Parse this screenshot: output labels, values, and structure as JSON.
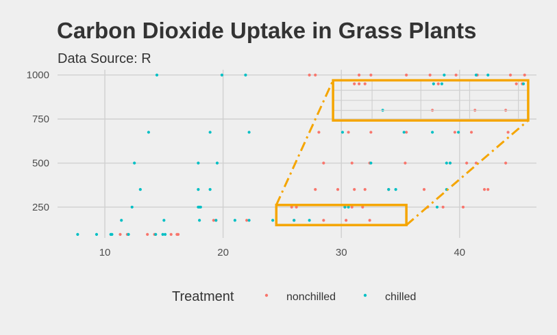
{
  "chart_data": {
    "type": "scatter",
    "title": "Carbon Dioxide Uptake in Grass Plants",
    "subtitle": "Data Source: R",
    "xlabel": "",
    "ylabel": "",
    "xlim": [
      6,
      46.5
    ],
    "ylim": [
      75,
      1030
    ],
    "x_ticks": [
      "10",
      "20",
      "30",
      "40"
    ],
    "y_ticks": [
      "250",
      "500",
      "750",
      "1000"
    ],
    "grid": true,
    "legend": {
      "title": "Treatment",
      "position": "bottom",
      "entries": [
        {
          "label": "nonchilled",
          "color": "#f8766d"
        },
        {
          "label": "chilled",
          "color": "#00bfc4"
        }
      ]
    },
    "series": [
      {
        "name": "nonchilled",
        "color": "#f8766d",
        "points": [
          [
            11.3,
            95
          ],
          [
            11.9,
            95
          ],
          [
            13.6,
            95
          ],
          [
            14.2,
            95
          ],
          [
            15.6,
            95
          ],
          [
            16.1,
            95
          ],
          [
            16.2,
            95
          ],
          [
            19.2,
            175
          ],
          [
            19.4,
            175
          ],
          [
            22.0,
            175
          ],
          [
            26.0,
            175
          ],
          [
            28.5,
            175
          ],
          [
            30.4,
            175
          ],
          [
            32.4,
            175
          ],
          [
            25.8,
            250
          ],
          [
            26.2,
            250
          ],
          [
            30.3,
            250
          ],
          [
            30.9,
            250
          ],
          [
            31.8,
            250
          ],
          [
            37.3,
            250
          ],
          [
            38.6,
            250
          ],
          [
            40.3,
            250
          ],
          [
            27.8,
            350
          ],
          [
            29.7,
            350
          ],
          [
            31.1,
            350
          ],
          [
            32.0,
            350
          ],
          [
            34.0,
            350
          ],
          [
            37.0,
            350
          ],
          [
            42.1,
            350
          ],
          [
            42.4,
            350
          ],
          [
            28.5,
            500
          ],
          [
            30.9,
            500
          ],
          [
            32.4,
            500
          ],
          [
            35.4,
            500
          ],
          [
            39.2,
            500
          ],
          [
            40.6,
            500
          ],
          [
            41.4,
            500
          ],
          [
            43.9,
            500
          ],
          [
            28.1,
            675
          ],
          [
            30.6,
            675
          ],
          [
            32.5,
            675
          ],
          [
            35.5,
            675
          ],
          [
            39.6,
            675
          ],
          [
            41.0,
            675
          ],
          [
            44.1,
            675
          ],
          [
            27.3,
            1000
          ],
          [
            27.8,
            1000
          ],
          [
            31.5,
            1000
          ],
          [
            32.5,
            1000
          ],
          [
            35.5,
            1000
          ],
          [
            37.5,
            1000
          ],
          [
            39.7,
            1000
          ],
          [
            41.5,
            1000
          ],
          [
            44.3,
            1000
          ],
          [
            45.5,
            1000
          ],
          [
            31.1,
            950
          ],
          [
            31.5,
            950
          ],
          [
            32.0,
            950
          ],
          [
            38.2,
            950
          ],
          [
            44.8,
            950
          ],
          [
            45.3,
            950
          ],
          [
            37.7,
            800
          ],
          [
            41.3,
            800
          ],
          [
            43.9,
            800
          ]
        ]
      },
      {
        "name": "chilled",
        "color": "#00bfc4",
        "points": [
          [
            7.7,
            95
          ],
          [
            9.3,
            95
          ],
          [
            10.5,
            95
          ],
          [
            10.6,
            95
          ],
          [
            12.0,
            95
          ],
          [
            14.3,
            95
          ],
          [
            14.9,
            95
          ],
          [
            15.1,
            95
          ],
          [
            11.4,
            175
          ],
          [
            18.0,
            175
          ],
          [
            19.4,
            175
          ],
          [
            21.0,
            175
          ],
          [
            22.2,
            175
          ],
          [
            24.2,
            175
          ],
          [
            26.0,
            175
          ],
          [
            27.3,
            175
          ],
          [
            15.0,
            175
          ],
          [
            12.3,
            250
          ],
          [
            17.9,
            250
          ],
          [
            18.0,
            250
          ],
          [
            18.1,
            250
          ],
          [
            30.3,
            250
          ],
          [
            30.6,
            250
          ],
          [
            38.1,
            250
          ],
          [
            13.0,
            350
          ],
          [
            17.9,
            350
          ],
          [
            18.9,
            350
          ],
          [
            34.0,
            350
          ],
          [
            34.6,
            350
          ],
          [
            38.9,
            350
          ],
          [
            12.5,
            500
          ],
          [
            17.9,
            500
          ],
          [
            19.5,
            500
          ],
          [
            32.5,
            500
          ],
          [
            38.9,
            500
          ],
          [
            39.2,
            500
          ],
          [
            13.7,
            675
          ],
          [
            18.9,
            675
          ],
          [
            22.2,
            675
          ],
          [
            30.1,
            675
          ],
          [
            35.3,
            675
          ],
          [
            37.7,
            675
          ],
          [
            39.9,
            675
          ],
          [
            33.5,
            800
          ],
          [
            14.4,
            1000
          ],
          [
            19.9,
            1000
          ],
          [
            21.9,
            1000
          ],
          [
            38.7,
            1000
          ],
          [
            41.4,
            1000
          ],
          [
            42.4,
            1000
          ],
          [
            37.8,
            950
          ],
          [
            38.5,
            950
          ],
          [
            45.4,
            950
          ]
        ]
      }
    ],
    "annotation": {
      "type": "zoom-callout",
      "color": "#f5a500",
      "source_region": {
        "x": [
          24.5,
          35.5
        ],
        "y": [
          148,
          262
        ]
      },
      "target_region": {
        "x": [
          29.3,
          45.8
        ],
        "y": [
          742,
          970
        ]
      }
    }
  }
}
